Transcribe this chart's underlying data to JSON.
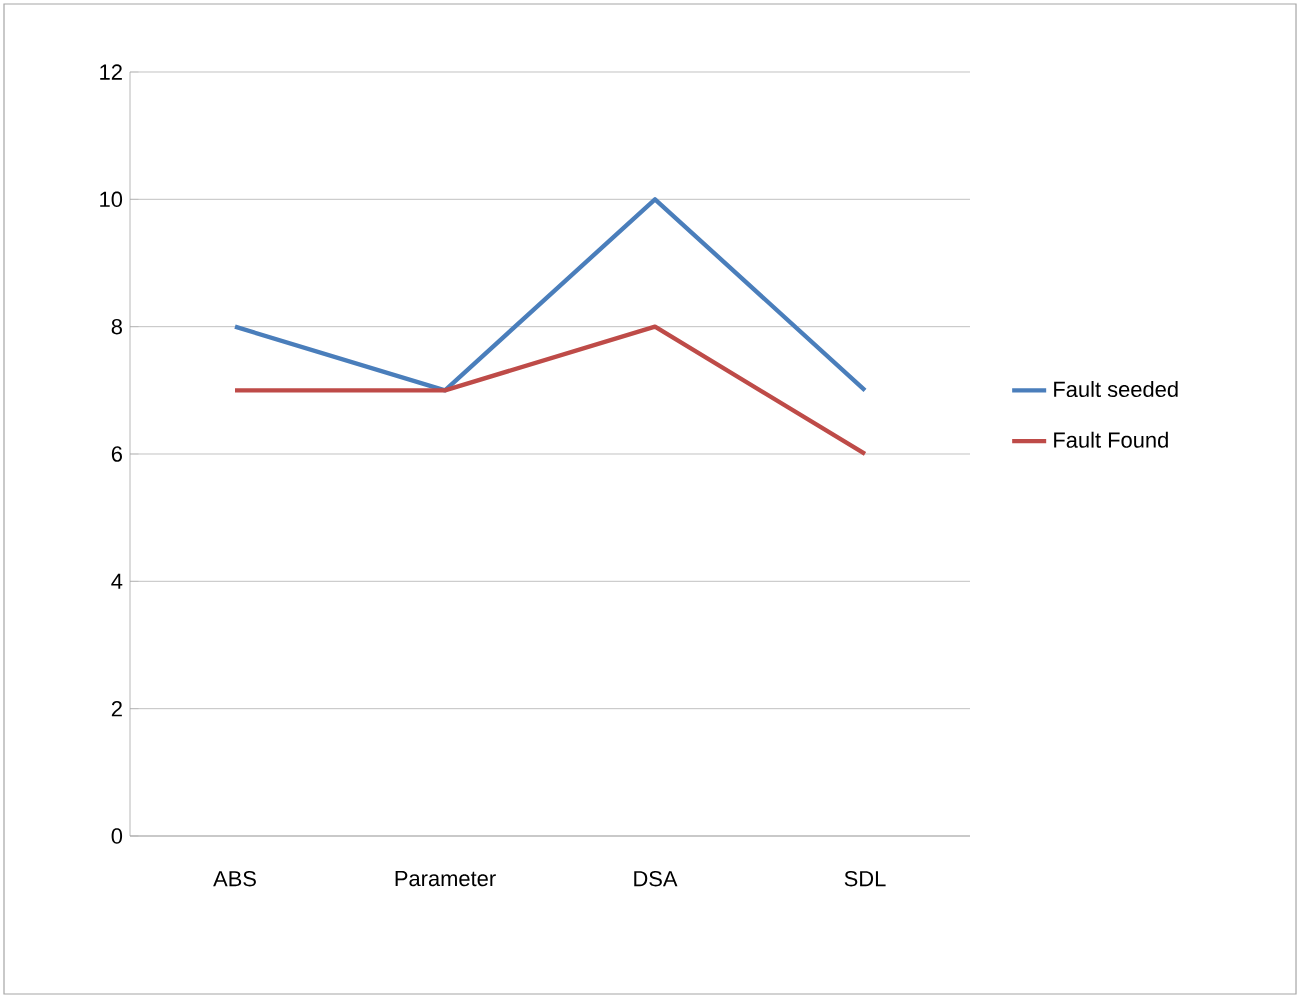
{
  "chart_data": {
    "type": "line",
    "categories": [
      "ABS",
      "Parameter",
      "DSA",
      "SDL"
    ],
    "series": [
      {
        "name": "Fault seeded",
        "color": "#4a7ebb",
        "values": [
          8,
          7,
          10,
          7
        ]
      },
      {
        "name": "Fault Found",
        "color": "#be4b48",
        "values": [
          7,
          7,
          8,
          6
        ]
      }
    ],
    "ylim": [
      0,
      12
    ],
    "yticks": [
      0,
      2,
      4,
      6,
      8,
      10,
      12
    ],
    "grid": "y",
    "legend": "right",
    "marker": "none",
    "line_style": "solid"
  }
}
